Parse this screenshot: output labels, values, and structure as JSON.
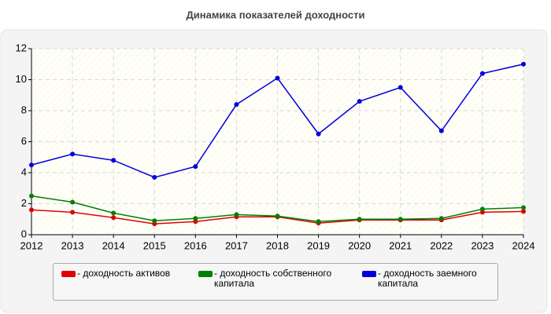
{
  "chart_data": {
    "type": "line",
    "title": "Динамика показателей доходности",
    "x": [
      2012,
      2013,
      2014,
      2015,
      2016,
      2017,
      2018,
      2019,
      2020,
      2021,
      2022,
      2023,
      2024
    ],
    "xlim": [
      2012,
      2024
    ],
    "xticks": [
      2012,
      2013,
      2014,
      2015,
      2016,
      2017,
      2018,
      2019,
      2020,
      2021,
      2022,
      2023,
      2024
    ],
    "ylim": [
      0,
      12
    ],
    "yticks": [
      0,
      2,
      4,
      6,
      8,
      10,
      12
    ],
    "grid": true,
    "legend": "bottom",
    "series": [
      {
        "name": "- доходность активов",
        "color": "#e00000",
        "values": [
          1.6,
          1.45,
          1.1,
          0.7,
          0.85,
          1.15,
          1.15,
          0.75,
          0.95,
          0.95,
          0.95,
          1.45,
          1.5
        ]
      },
      {
        "name": "- доходность собственного капитала",
        "color": "#008000",
        "values": [
          2.5,
          2.1,
          1.4,
          0.9,
          1.05,
          1.3,
          1.2,
          0.85,
          1.0,
          1.0,
          1.05,
          1.65,
          1.75
        ]
      },
      {
        "name": "- доходность заемного капитала",
        "color": "#0000dd",
        "values": [
          4.5,
          5.2,
          4.8,
          3.7,
          4.4,
          8.4,
          10.1,
          6.5,
          8.6,
          9.5,
          6.7,
          10.4,
          11.0
        ]
      }
    ]
  }
}
